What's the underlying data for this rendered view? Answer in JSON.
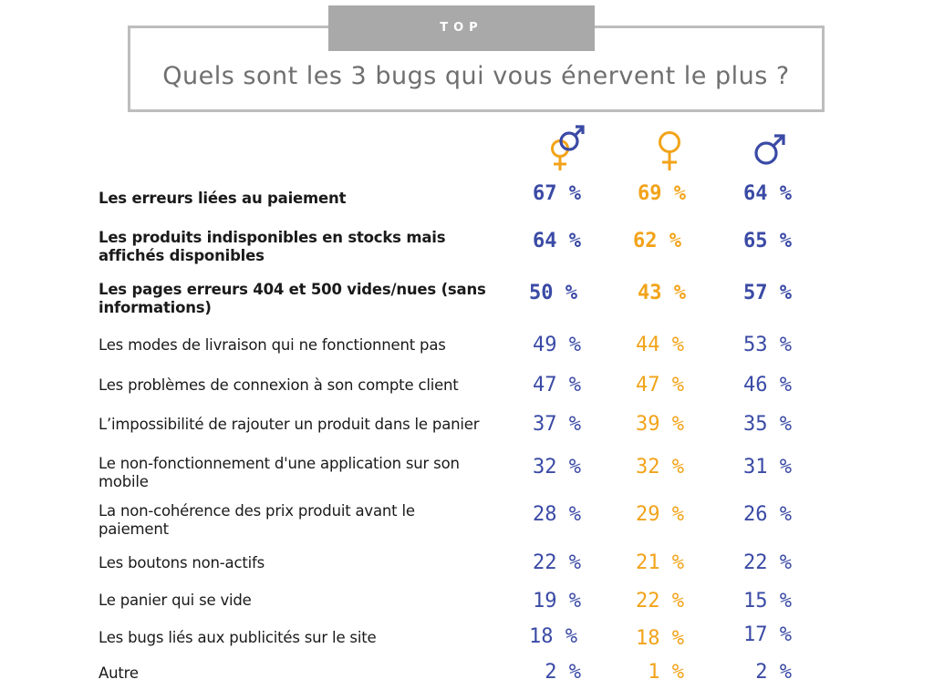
{
  "header": {
    "tag": "TOP",
    "question": "Quels sont les 3 bugs qui vous énervent le plus ?"
  },
  "colors": {
    "blue": "#3a4aa5",
    "orange": "#f2a31a",
    "gray": "#a9a9a9"
  },
  "icons": {
    "all": "male-female-symbol-icon",
    "female": "female-symbol-icon",
    "male": "male-symbol-icon"
  },
  "chart_data": {
    "type": "table",
    "columns": [
      "all",
      "female",
      "male"
    ],
    "rows": [
      {
        "label": "Les erreurs liées au paiement",
        "values": [
          "67 %",
          "69 %",
          "64 %"
        ]
      },
      {
        "label": "Les produits indisponibles en stocks mais affichés disponibles",
        "values": [
          "64 %",
          "62 %",
          "65 %"
        ]
      },
      {
        "label": "Les pages erreurs 404 et 500 vides/nues (sans informations)",
        "values": [
          "50 %",
          "43 %",
          "57 %"
        ]
      },
      {
        "label": "Les modes de livraison qui ne fonctionnent pas",
        "values": [
          "49 %",
          "44 %",
          "53 %"
        ]
      },
      {
        "label": "Les problèmes de connexion à son compte client",
        "values": [
          "47 %",
          "47 %",
          "46 %"
        ]
      },
      {
        "label": "L’impossibilité de rajouter un produit dans le panier",
        "values": [
          "37 %",
          "39 %",
          "35 %"
        ]
      },
      {
        "label": "Le non-fonctionnement d'une application sur son mobile",
        "values": [
          "32 %",
          "32 %",
          "31 %"
        ]
      },
      {
        "label": "La non-cohérence des prix produit avant le paiement",
        "values": [
          "28 %",
          "29 %",
          "26 %"
        ]
      },
      {
        "label": "Les boutons non-actifs",
        "values": [
          "22 %",
          "21 %",
          "22 %"
        ]
      },
      {
        "label": "Le panier qui se vide",
        "values": [
          "19 %",
          "22 %",
          "15 %"
        ]
      },
      {
        "label": "Les bugs liés aux publicités sur le site",
        "values": [
          "18 %",
          "18 %",
          "17 %"
        ]
      },
      {
        "label": "Autre",
        "values": [
          " 2 %",
          " 1 %",
          " 2 %"
        ]
      }
    ]
  }
}
